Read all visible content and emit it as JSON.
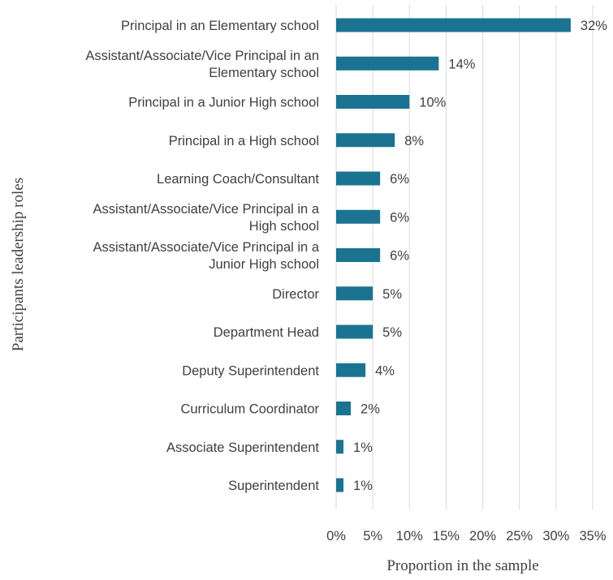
{
  "chart_data": {
    "type": "bar",
    "orientation": "horizontal",
    "categories": [
      [
        "Principal in an Elementary school"
      ],
      [
        "Assistant/Associate/Vice Principal in an",
        "Elementary school"
      ],
      [
        "Principal in a Junior High school"
      ],
      [
        "Principal in a High school"
      ],
      [
        "Learning Coach/Consultant"
      ],
      [
        "Assistant/Associate/Vice Principal in a",
        "High school"
      ],
      [
        "Assistant/Associate/Vice Principal in a",
        "Junior High school"
      ],
      [
        "Director"
      ],
      [
        "Department Head"
      ],
      [
        "Deputy Superintendent"
      ],
      [
        "Curriculum Coordinator"
      ],
      [
        "Associate Superintendent"
      ],
      [
        "Superintendent"
      ]
    ],
    "values": [
      32,
      14,
      10,
      8,
      6,
      6,
      6,
      5,
      5,
      4,
      2,
      1,
      1
    ],
    "data_labels": [
      "32%",
      "14%",
      "10%",
      "8%",
      "6%",
      "6%",
      "6%",
      "5%",
      "5%",
      "4%",
      "2%",
      "1%",
      "1%"
    ],
    "xlim": [
      0,
      35
    ],
    "x_ticks": [
      0,
      5,
      10,
      15,
      20,
      25,
      30,
      35
    ],
    "x_tick_labels": [
      "0%",
      "5%",
      "10%",
      "15%",
      "20%",
      "25%",
      "30%",
      "35%"
    ],
    "xlabel": "Proportion in the sample",
    "ylabel": "Participants leadership roles",
    "grid": "vertical",
    "legend": "none",
    "bar_color": "#1a7491"
  }
}
